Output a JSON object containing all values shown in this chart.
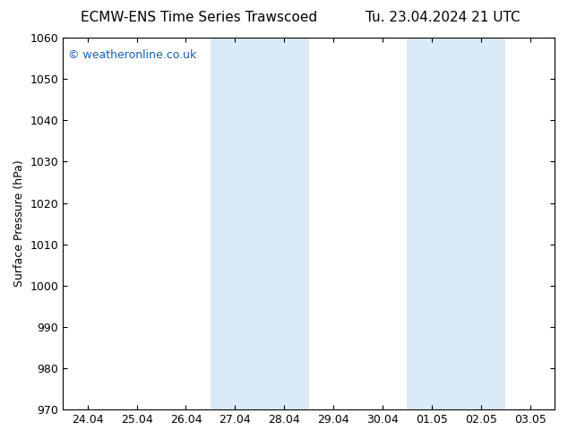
{
  "title_left": "ECMW-ENS Time Series Trawscoed",
  "title_right": "Tu. 23.04.2024 21 UTC",
  "ylabel": "Surface Pressure (hPa)",
  "background_color": "#ffffff",
  "plot_bg_color": "#ffffff",
  "ylim": [
    970,
    1060
  ],
  "yticks": [
    970,
    980,
    990,
    1000,
    1010,
    1020,
    1030,
    1040,
    1050,
    1060
  ],
  "xtick_labels": [
    "24.04",
    "25.04",
    "26.04",
    "27.04",
    "28.04",
    "29.04",
    "30.04",
    "01.05",
    "02.05",
    "03.05"
  ],
  "shade_regions": [
    {
      "xstart": 3,
      "xend": 4,
      "color": "#daeaf7"
    },
    {
      "xstart": 7,
      "xend": 8,
      "color": "#daeaf7"
    }
  ],
  "watermark": "© weatheronline.co.uk",
  "watermark_color": "#1a5faa",
  "tick_color": "#000000",
  "spine_color": "#000000",
  "title_fontsize": 11,
  "ylabel_fontsize": 9,
  "tick_fontsize": 9,
  "watermark_fontsize": 9
}
